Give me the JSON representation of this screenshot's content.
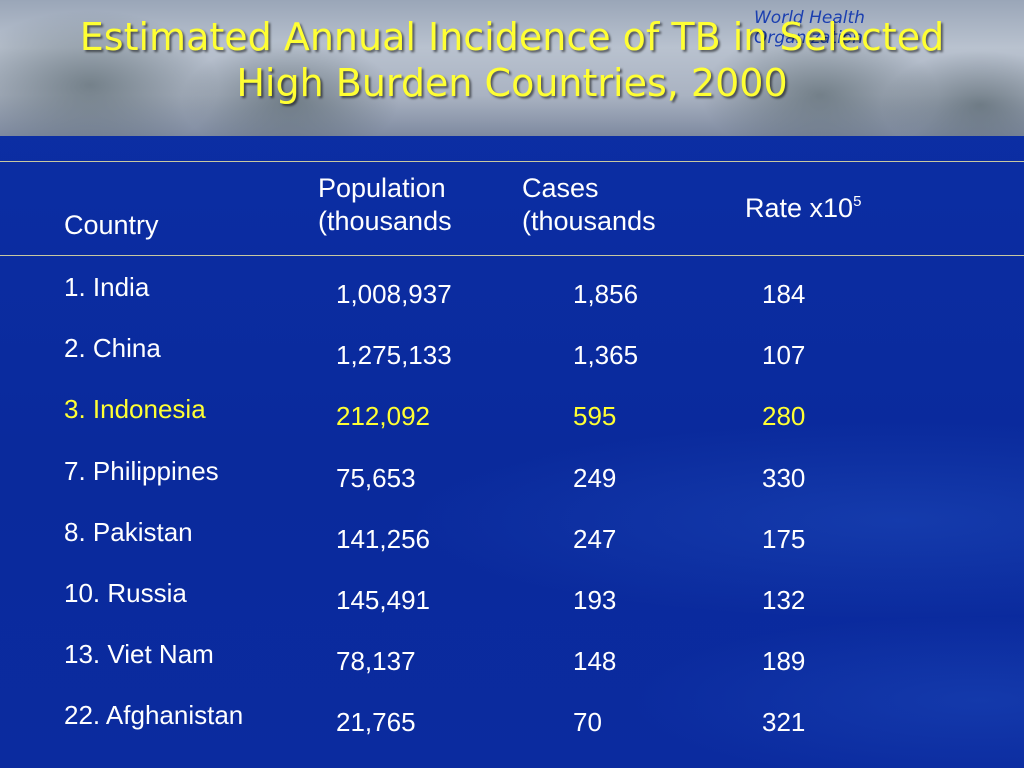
{
  "title": {
    "line1": "Estimated Annual Incidence of TB in Selected",
    "line2": "High Burden Countries, 2000"
  },
  "logo": {
    "line1": "World Health",
    "line2": "Organization"
  },
  "table": {
    "columns": {
      "country": "Country",
      "population_line1": "Population",
      "population_line2": "(thousands",
      "cases_line1": "Cases",
      "cases_line2": "(thousands",
      "rate": "Rate x10",
      "rate_exponent": "5"
    },
    "rows": [
      {
        "country": "1. India",
        "population": "1,008,937",
        "cases": "1,856",
        "rate": "184"
      },
      {
        "country": "2. China",
        "population": "1,275,133",
        "cases": "1,365",
        "rate": "107"
      },
      {
        "country": "3. Indonesia",
        "population": "212,092",
        "cases": "595",
        "rate": "280"
      },
      {
        "country": "7. Philippines",
        "population": "75,653",
        "cases": "249",
        "rate": "330"
      },
      {
        "country": "8. Pakistan",
        "population": "141,256",
        "cases": "247",
        "rate": "175"
      },
      {
        "country": "10. Russia",
        "population": "145,491",
        "cases": "193",
        "rate": "132"
      },
      {
        "country": "13. Viet Nam",
        "population": "78,137",
        "cases": "148",
        "rate": "189"
      },
      {
        "country": "22. Afghanistan",
        "population": "21,765",
        "cases": "70",
        "rate": "321"
      }
    ]
  },
  "colors": {
    "background": "#0a2a9c",
    "title_text": "#ffff33",
    "body_text": "#ffffff",
    "highlight_row": "#ffff33"
  }
}
